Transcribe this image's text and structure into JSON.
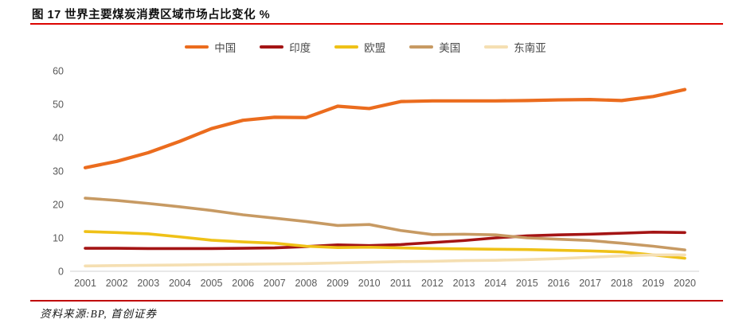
{
  "header": {
    "title": "图 17 世界主要煤炭消费区域市场占比变化 %"
  },
  "footer": {
    "source": "资料来源:BP, 首创证券"
  },
  "colors": {
    "top_rule": "#DC0400",
    "bottom_rule": "#C00000",
    "axis_line": "#D9D9D9",
    "tick_text": "#595959",
    "legend_text": "#4a4a4a"
  },
  "chart_data": {
    "type": "line",
    "title": "图 17 世界主要煤炭消费区域市场占比变化 %",
    "unit": "%",
    "categories": [
      "2001",
      "2002",
      "2003",
      "2004",
      "2005",
      "2006",
      "2007",
      "2008",
      "2009",
      "2010",
      "2011",
      "2012",
      "2013",
      "2014",
      "2015",
      "2016",
      "2017",
      "2018",
      "2019",
      "2020"
    ],
    "series": [
      {
        "key": "china",
        "name": "中国",
        "color": "#EB6C1E",
        "values": [
          31.0,
          32.9,
          35.5,
          38.9,
          42.7,
          45.2,
          46.1,
          46.0,
          49.4,
          48.7,
          50.8,
          51.0,
          51.0,
          51.0,
          51.1,
          51.3,
          51.4,
          51.1,
          52.3,
          54.4
        ]
      },
      {
        "key": "india",
        "name": "印度",
        "color": "#A41414",
        "values": [
          6.9,
          6.9,
          6.8,
          6.8,
          6.8,
          6.9,
          7.0,
          7.4,
          7.9,
          7.7,
          8.0,
          8.6,
          9.2,
          10.0,
          10.6,
          10.9,
          11.1,
          11.4,
          11.7,
          11.6
        ]
      },
      {
        "key": "eu",
        "name": "欧盟",
        "color": "#EFC117",
        "values": [
          11.9,
          11.6,
          11.2,
          10.3,
          9.3,
          8.8,
          8.4,
          7.5,
          7.1,
          7.2,
          7.0,
          6.8,
          6.7,
          6.6,
          6.5,
          6.3,
          6.1,
          5.8,
          4.9,
          3.9
        ]
      },
      {
        "key": "usa",
        "name": "美国",
        "color": "#C79A63",
        "values": [
          21.9,
          21.2,
          20.3,
          19.3,
          18.2,
          16.9,
          15.9,
          14.9,
          13.7,
          14.0,
          12.2,
          11.0,
          11.1,
          10.9,
          10.0,
          9.6,
          9.2,
          8.4,
          7.5,
          6.4
        ]
      },
      {
        "key": "southeast-asia",
        "name": "东南亚",
        "color": "#F5DFB2",
        "values": [
          1.6,
          1.7,
          1.8,
          1.9,
          2.0,
          2.1,
          2.2,
          2.3,
          2.5,
          2.7,
          2.9,
          3.0,
          3.2,
          3.3,
          3.5,
          3.8,
          4.2,
          4.6,
          4.9,
          4.9
        ]
      }
    ],
    "ylim": [
      0,
      60
    ],
    "yticks": [
      0,
      10,
      20,
      30,
      40,
      50,
      60
    ],
    "grid": false,
    "legend_position": "top"
  }
}
